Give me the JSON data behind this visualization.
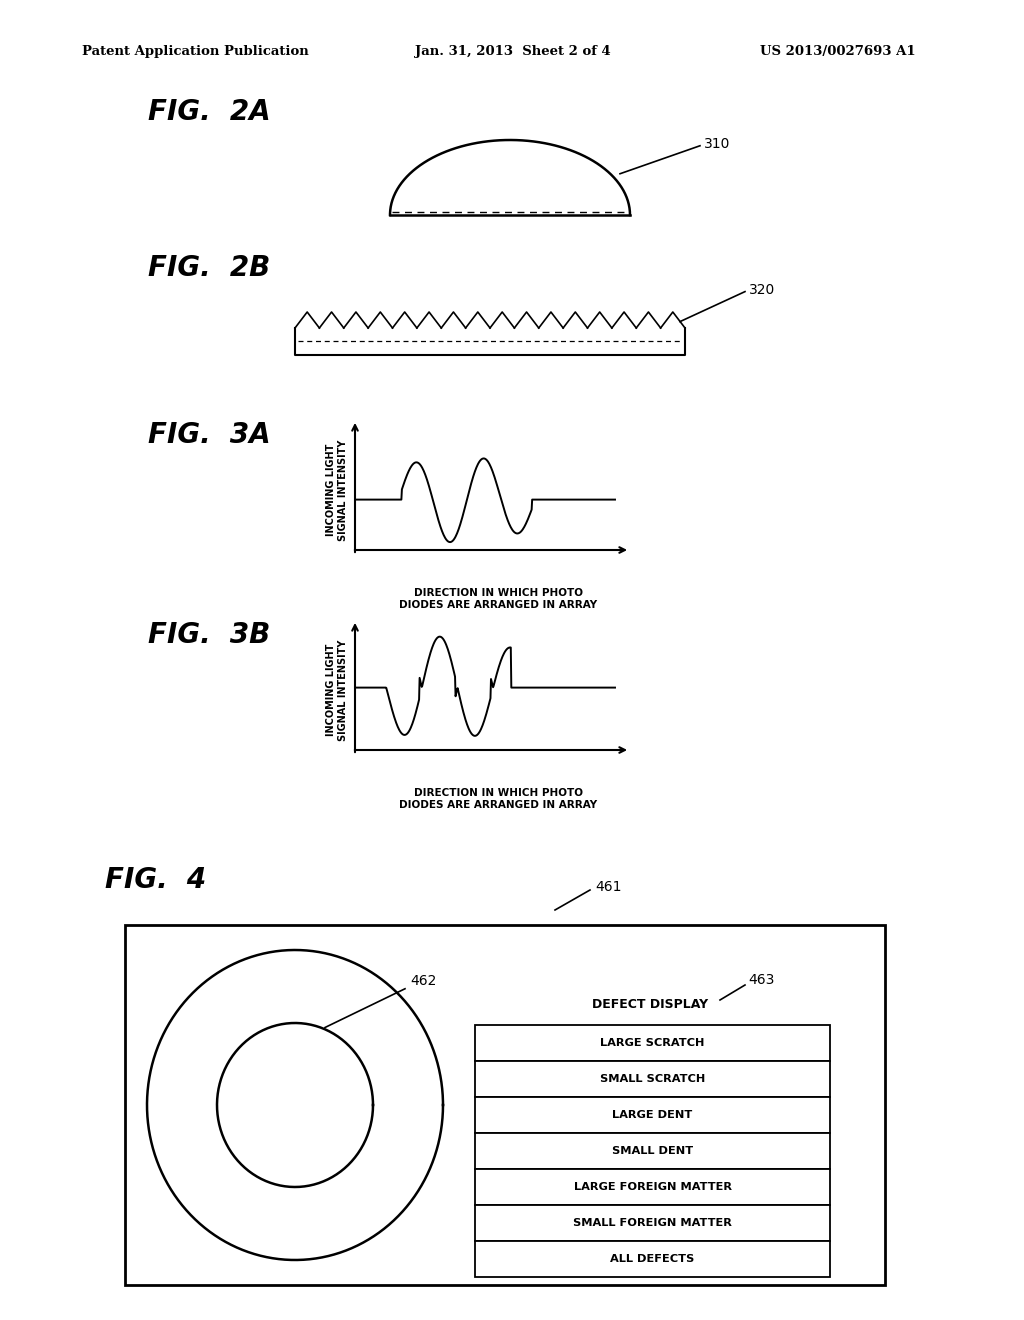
{
  "bg_color": "#ffffff",
  "header_left": "Patent Application Publication",
  "header_mid": "Jan. 31, 2013  Sheet 2 of 4",
  "header_right": "US 2013/0027693 A1",
  "fig2a_label": "FIG.  2A",
  "fig2b_label": "FIG.  2B",
  "fig3a_label": "FIG.  3A",
  "fig3b_label": "FIG.  3B",
  "fig4_label": "FIG.  4",
  "ref_310": "310",
  "ref_320": "320",
  "ref_461": "461",
  "ref_462": "462",
  "ref_463": "463",
  "ylabel_3a": "INCOMING LIGHT\nSIGNAL INTENSITY",
  "xlabel_3a": "DIRECTION IN WHICH PHOTO\nDIODES ARE ARRANGED IN ARRAY",
  "ylabel_3b": "INCOMING LIGHT\nSIGNAL INTENSITY",
  "xlabel_3b": "DIRECTION IN WHICH PHOTO\nDIODES ARE ARRANGED IN ARRAY",
  "defect_title": "DEFECT DISPLAY",
  "defect_items": [
    "LARGE SCRATCH",
    "SMALL SCRATCH",
    "LARGE DENT",
    "SMALL DENT",
    "LARGE FOREIGN MATTER",
    "SMALL FOREIGN MATTER",
    "ALL DEFECTS"
  ]
}
